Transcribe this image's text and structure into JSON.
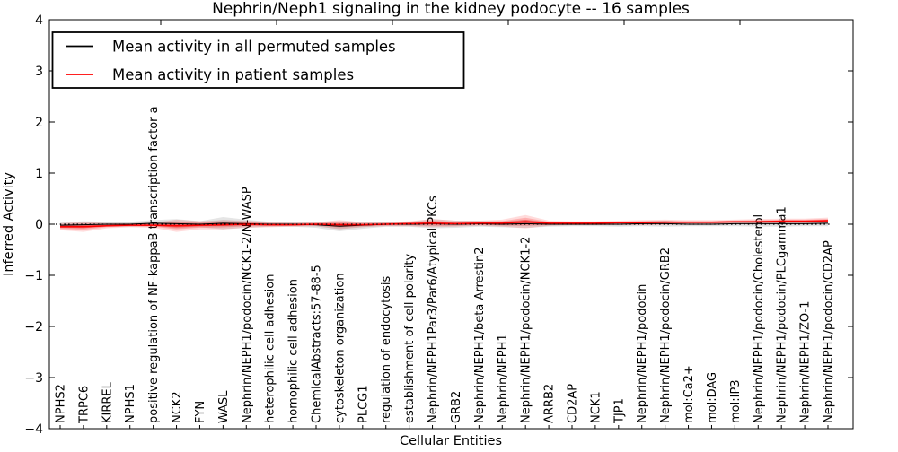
{
  "chart_data": {
    "type": "line",
    "title": "Nephrin/Neph1 signaling in the kidney podocyte -- 16 samples",
    "xlabel": "Cellular Entities",
    "ylabel": "Inferred Activity",
    "ylim": [
      -4,
      4
    ],
    "yticks": [
      -4,
      -3,
      -2,
      -1,
      0,
      1,
      2,
      3,
      4
    ],
    "grid": false,
    "legend_position": "upper left",
    "zero_line": {
      "y": 0,
      "style": "dotted",
      "color": "#000000"
    },
    "categories": [
      "NPHS2",
      "TRPC6",
      "KIRREL",
      "NPHS1",
      "positive regulation of NF-kappaB transcription factor a",
      "NCK2",
      "FYN",
      "WASL",
      "Nephrin/NEPH1/podocin/NCK1-2/N-WASP",
      "heterophilic cell adhesion",
      "homophilic cell adhesion",
      "ChemicalAbstracts:57-88-5",
      "cytoskeleton organization",
      "PLCG1",
      "regulation of endocytosis",
      "establishment of cell polarity",
      "Nephrin/NEPH1Par3/Par6/Atypical PKCs",
      "GRB2",
      "Nephrin/NEPH1/beta Arrestin2",
      "Nephrin/NEPH1",
      "Nephrin/NEPH1/podocin/NCK1-2",
      "ARRB2",
      "CD2AP",
      "NCK1",
      "TJP1",
      "Nephrin/NEPH1/podocin",
      "Nephrin/NEPH1/podocin/GRB2",
      "mol:Ca2+",
      "mol:DAG",
      "mol:IP3",
      "Nephrin/NEPH1/podocin/Cholesterol",
      "Nephrin/NEPH1/podocin/PLCgamma1",
      "Nephrin/NEPH1/ZO-1",
      "Nephrin/NEPH1/podocin/CD2AP"
    ],
    "series": [
      {
        "name": "Mean activity in all permuted samples",
        "color": "#000000",
        "values": [
          -0.02,
          -0.01,
          0.0,
          0.0,
          0.02,
          0.01,
          0.0,
          0.02,
          0.01,
          0.0,
          0.0,
          -0.01,
          -0.04,
          -0.02,
          0.0,
          0.0,
          0.01,
          0.0,
          0.01,
          0.0,
          0.01,
          0.0,
          0.0,
          0.0,
          0.0,
          0.01,
          0.01,
          0.0,
          0.0,
          0.01,
          0.01,
          0.01,
          0.01,
          0.02
        ],
        "band_halfwidth": [
          0.05,
          0.07,
          0.05,
          0.05,
          0.06,
          0.09,
          0.06,
          0.12,
          0.08,
          0.05,
          0.05,
          0.06,
          0.1,
          0.07,
          0.05,
          0.05,
          0.09,
          0.07,
          0.06,
          0.06,
          0.08,
          0.05,
          0.04,
          0.04,
          0.05,
          0.05,
          0.06,
          0.04,
          0.04,
          0.05,
          0.06,
          0.06,
          0.05,
          0.06
        ]
      },
      {
        "name": "Mean activity in patient samples",
        "color": "#ff0000",
        "values": [
          -0.05,
          -0.05,
          -0.03,
          -0.02,
          -0.02,
          -0.03,
          -0.02,
          -0.01,
          0.0,
          -0.01,
          -0.01,
          0.0,
          -0.01,
          -0.01,
          0.0,
          0.01,
          0.02,
          0.01,
          0.02,
          0.02,
          0.05,
          0.02,
          0.02,
          0.02,
          0.03,
          0.03,
          0.04,
          0.04,
          0.04,
          0.05,
          0.05,
          0.06,
          0.06,
          0.07
        ],
        "band_halfwidth": [
          0.07,
          0.1,
          0.05,
          0.04,
          0.05,
          0.12,
          0.08,
          0.09,
          0.07,
          0.05,
          0.04,
          0.04,
          0.09,
          0.05,
          0.04,
          0.05,
          0.08,
          0.06,
          0.05,
          0.07,
          0.13,
          0.05,
          0.04,
          0.04,
          0.04,
          0.05,
          0.05,
          0.04,
          0.04,
          0.04,
          0.05,
          0.05,
          0.05,
          0.06
        ]
      }
    ]
  }
}
